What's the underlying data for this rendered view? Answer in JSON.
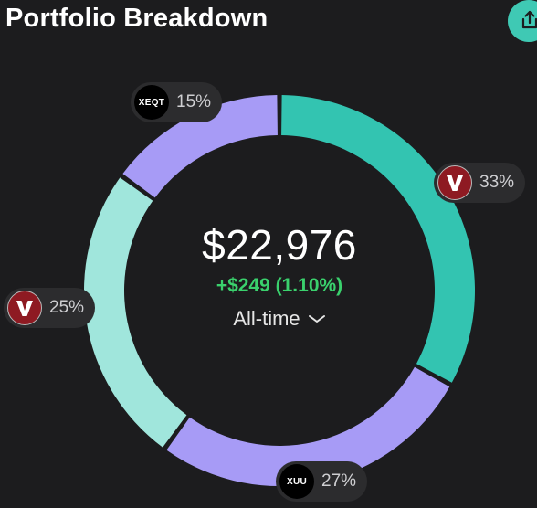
{
  "header": {
    "title": "Portfolio Breakdown",
    "share_icon": "share-icon"
  },
  "summary": {
    "total_value": "$22,976",
    "change": "+$249 (1.10%)",
    "period_label": "All-time",
    "period_icon": "chevron-down-icon"
  },
  "colors": {
    "background": "#1c1c1e",
    "accent": "#3fc9b4",
    "positive": "#3ad16d",
    "pill_bg": "#2c2c2e"
  },
  "chart_data": {
    "type": "pie",
    "variant": "donut",
    "slices": [
      {
        "holding_logo": "vanguard-v-logo",
        "percent": 33,
        "label": "33%",
        "color": "#33c4b1"
      },
      {
        "holding_logo_text": "XUU",
        "percent": 27,
        "label": "27%",
        "color": "#a79bf6"
      },
      {
        "holding_logo": "vanguard-v-logo",
        "percent": 25,
        "label": "25%",
        "color": "#a0e6dc"
      },
      {
        "holding_logo_text": "XEQT",
        "percent": 15,
        "label": "15%",
        "color": "#a79bf6"
      }
    ]
  }
}
